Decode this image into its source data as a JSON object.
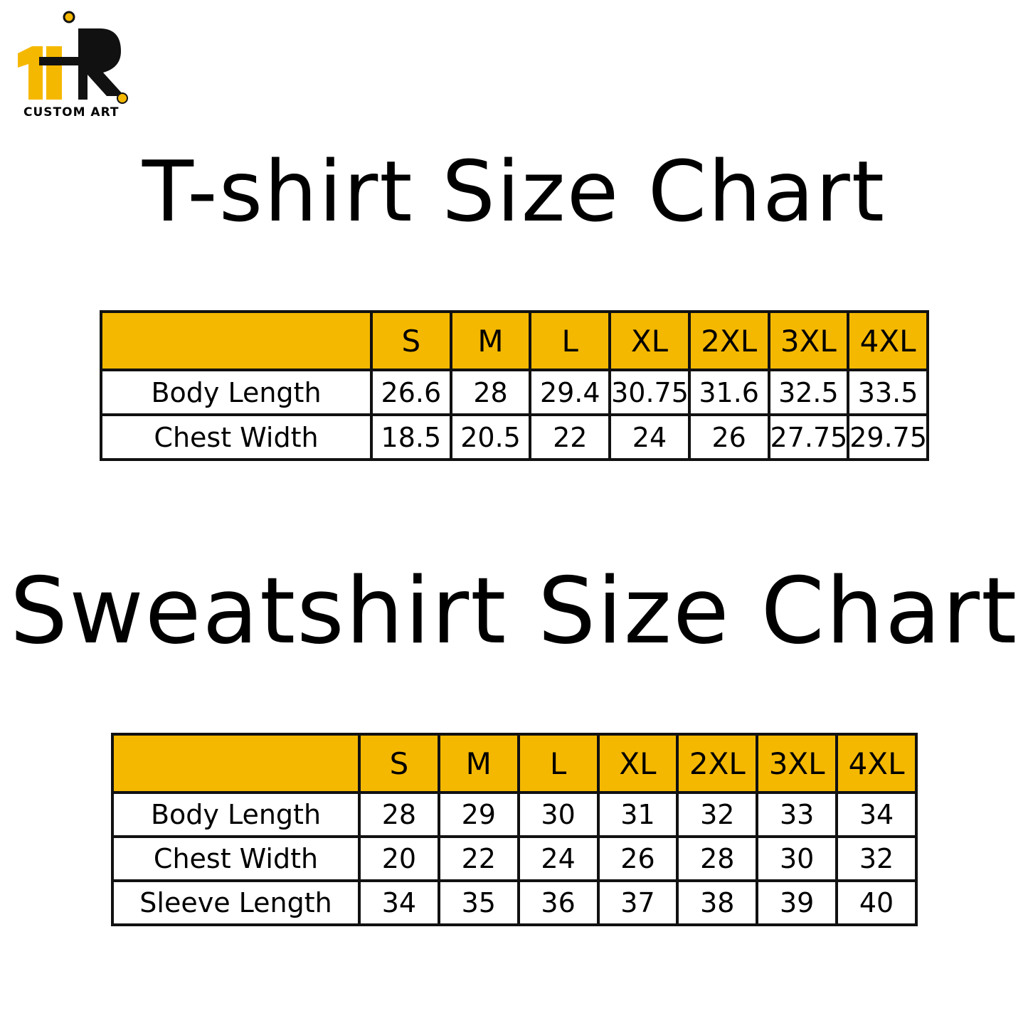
{
  "logo": {
    "text": "CUSTOM ART"
  },
  "tshirt": {
    "title": "T-shirt Size Chart",
    "table": {
      "header": [
        "S",
        "M",
        "L",
        "XL",
        "2XL",
        "3XL",
        "4XL"
      ],
      "rows": [
        {
          "label": "Body Length",
          "values": [
            "26.6",
            "28",
            "29.4",
            "30.75",
            "31.6",
            "32.5",
            "33.5"
          ]
        },
        {
          "label": "Chest Width",
          "values": [
            "18.5",
            "20.5",
            "22",
            "24",
            "26",
            "27.75",
            "29.75"
          ]
        }
      ]
    }
  },
  "sweatshirt": {
    "title": "Sweatshirt Size Chart",
    "table": {
      "header": [
        "S",
        "M",
        "L",
        "XL",
        "2XL",
        "3XL",
        "4XL"
      ],
      "rows": [
        {
          "label": "Body Length",
          "values": [
            "28",
            "29",
            "30",
            "31",
            "32",
            "33",
            "34"
          ]
        },
        {
          "label": "Chest Width",
          "values": [
            "20",
            "22",
            "24",
            "26",
            "28",
            "30",
            "32"
          ]
        },
        {
          "label": "Sleeve Length",
          "values": [
            "34",
            "35",
            "36",
            "37",
            "38",
            "39",
            "40"
          ]
        }
      ]
    }
  }
}
